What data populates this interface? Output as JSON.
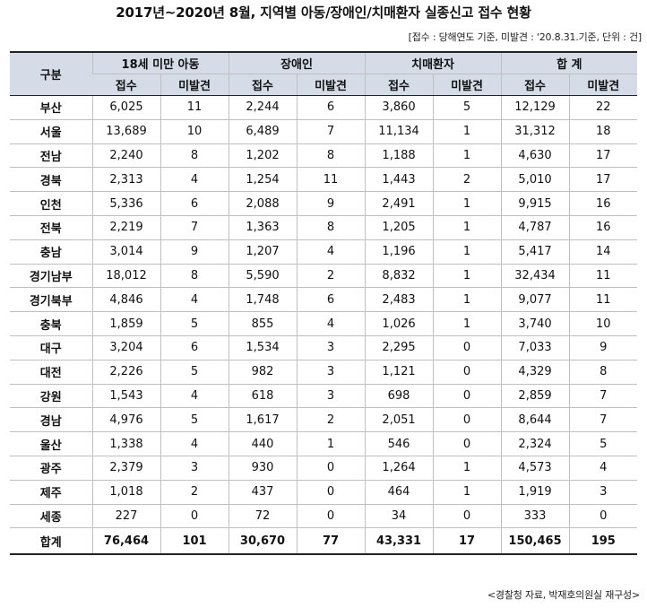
{
  "title": "2017년~2020년 8월, 지역별 아동/장애인/치매환자 실종신고 접수 현황",
  "note": "[접수 : 당해연도 기준, 미발견 : '20.8.31.기준, 단위 : 건]",
  "source": "<경찰청 자료, 박재호의원실 재구성>",
  "table": {
    "corner_header": "구분",
    "groups": [
      "18세 미만 아동",
      "장애인",
      "치매환자",
      "합 계"
    ],
    "subheaders": [
      "접수",
      "미발견",
      "접수",
      "미발견",
      "접수",
      "미발견",
      "접수",
      "미발견"
    ],
    "rows": [
      {
        "region": "부산",
        "cells": [
          "6,025",
          "11",
          "2,244",
          "6",
          "3,860",
          "5",
          "12,129",
          "22"
        ]
      },
      {
        "region": "서울",
        "cells": [
          "13,689",
          "10",
          "6,489",
          "7",
          "11,134",
          "1",
          "31,312",
          "18"
        ]
      },
      {
        "region": "전남",
        "cells": [
          "2,240",
          "8",
          "1,202",
          "8",
          "1,188",
          "1",
          "4,630",
          "17"
        ]
      },
      {
        "region": "경북",
        "cells": [
          "2,313",
          "4",
          "1,254",
          "11",
          "1,443",
          "2",
          "5,010",
          "17"
        ]
      },
      {
        "region": "인천",
        "cells": [
          "5,336",
          "6",
          "2,088",
          "9",
          "2,491",
          "1",
          "9,915",
          "16"
        ]
      },
      {
        "region": "전북",
        "cells": [
          "2,219",
          "7",
          "1,363",
          "8",
          "1,205",
          "1",
          "4,787",
          "16"
        ]
      },
      {
        "region": "충남",
        "cells": [
          "3,014",
          "9",
          "1,207",
          "4",
          "1,196",
          "1",
          "5,417",
          "14"
        ]
      },
      {
        "region": "경기남부",
        "cells": [
          "18,012",
          "8",
          "5,590",
          "2",
          "8,832",
          "1",
          "32,434",
          "11"
        ]
      },
      {
        "region": "경기북부",
        "cells": [
          "4,846",
          "4",
          "1,748",
          "6",
          "2,483",
          "1",
          "9,077",
          "11"
        ]
      },
      {
        "region": "충북",
        "cells": [
          "1,859",
          "5",
          "855",
          "4",
          "1,026",
          "1",
          "3,740",
          "10"
        ]
      },
      {
        "region": "대구",
        "cells": [
          "3,204",
          "6",
          "1,534",
          "3",
          "2,295",
          "0",
          "7,033",
          "9"
        ]
      },
      {
        "region": "대전",
        "cells": [
          "2,226",
          "5",
          "982",
          "3",
          "1,121",
          "0",
          "4,329",
          "8"
        ]
      },
      {
        "region": "강원",
        "cells": [
          "1,543",
          "4",
          "618",
          "3",
          "698",
          "0",
          "2,859",
          "7"
        ]
      },
      {
        "region": "경남",
        "cells": [
          "4,976",
          "5",
          "1,617",
          "2",
          "2,051",
          "0",
          "8,644",
          "7"
        ]
      },
      {
        "region": "울산",
        "cells": [
          "1,338",
          "4",
          "440",
          "1",
          "546",
          "0",
          "2,324",
          "5"
        ]
      },
      {
        "region": "광주",
        "cells": [
          "2,379",
          "3",
          "930",
          "0",
          "1,264",
          "1",
          "4,573",
          "4"
        ]
      },
      {
        "region": "제주",
        "cells": [
          "1,018",
          "2",
          "437",
          "0",
          "464",
          "1",
          "1,919",
          "3"
        ]
      },
      {
        "region": "세종",
        "cells": [
          "227",
          "0",
          "72",
          "0",
          "34",
          "0",
          "333",
          "0"
        ]
      }
    ],
    "total": {
      "region": "합계",
      "cells": [
        "76,464",
        "101",
        "30,670",
        "77",
        "43,331",
        "17",
        "150,465",
        "195"
      ]
    }
  }
}
